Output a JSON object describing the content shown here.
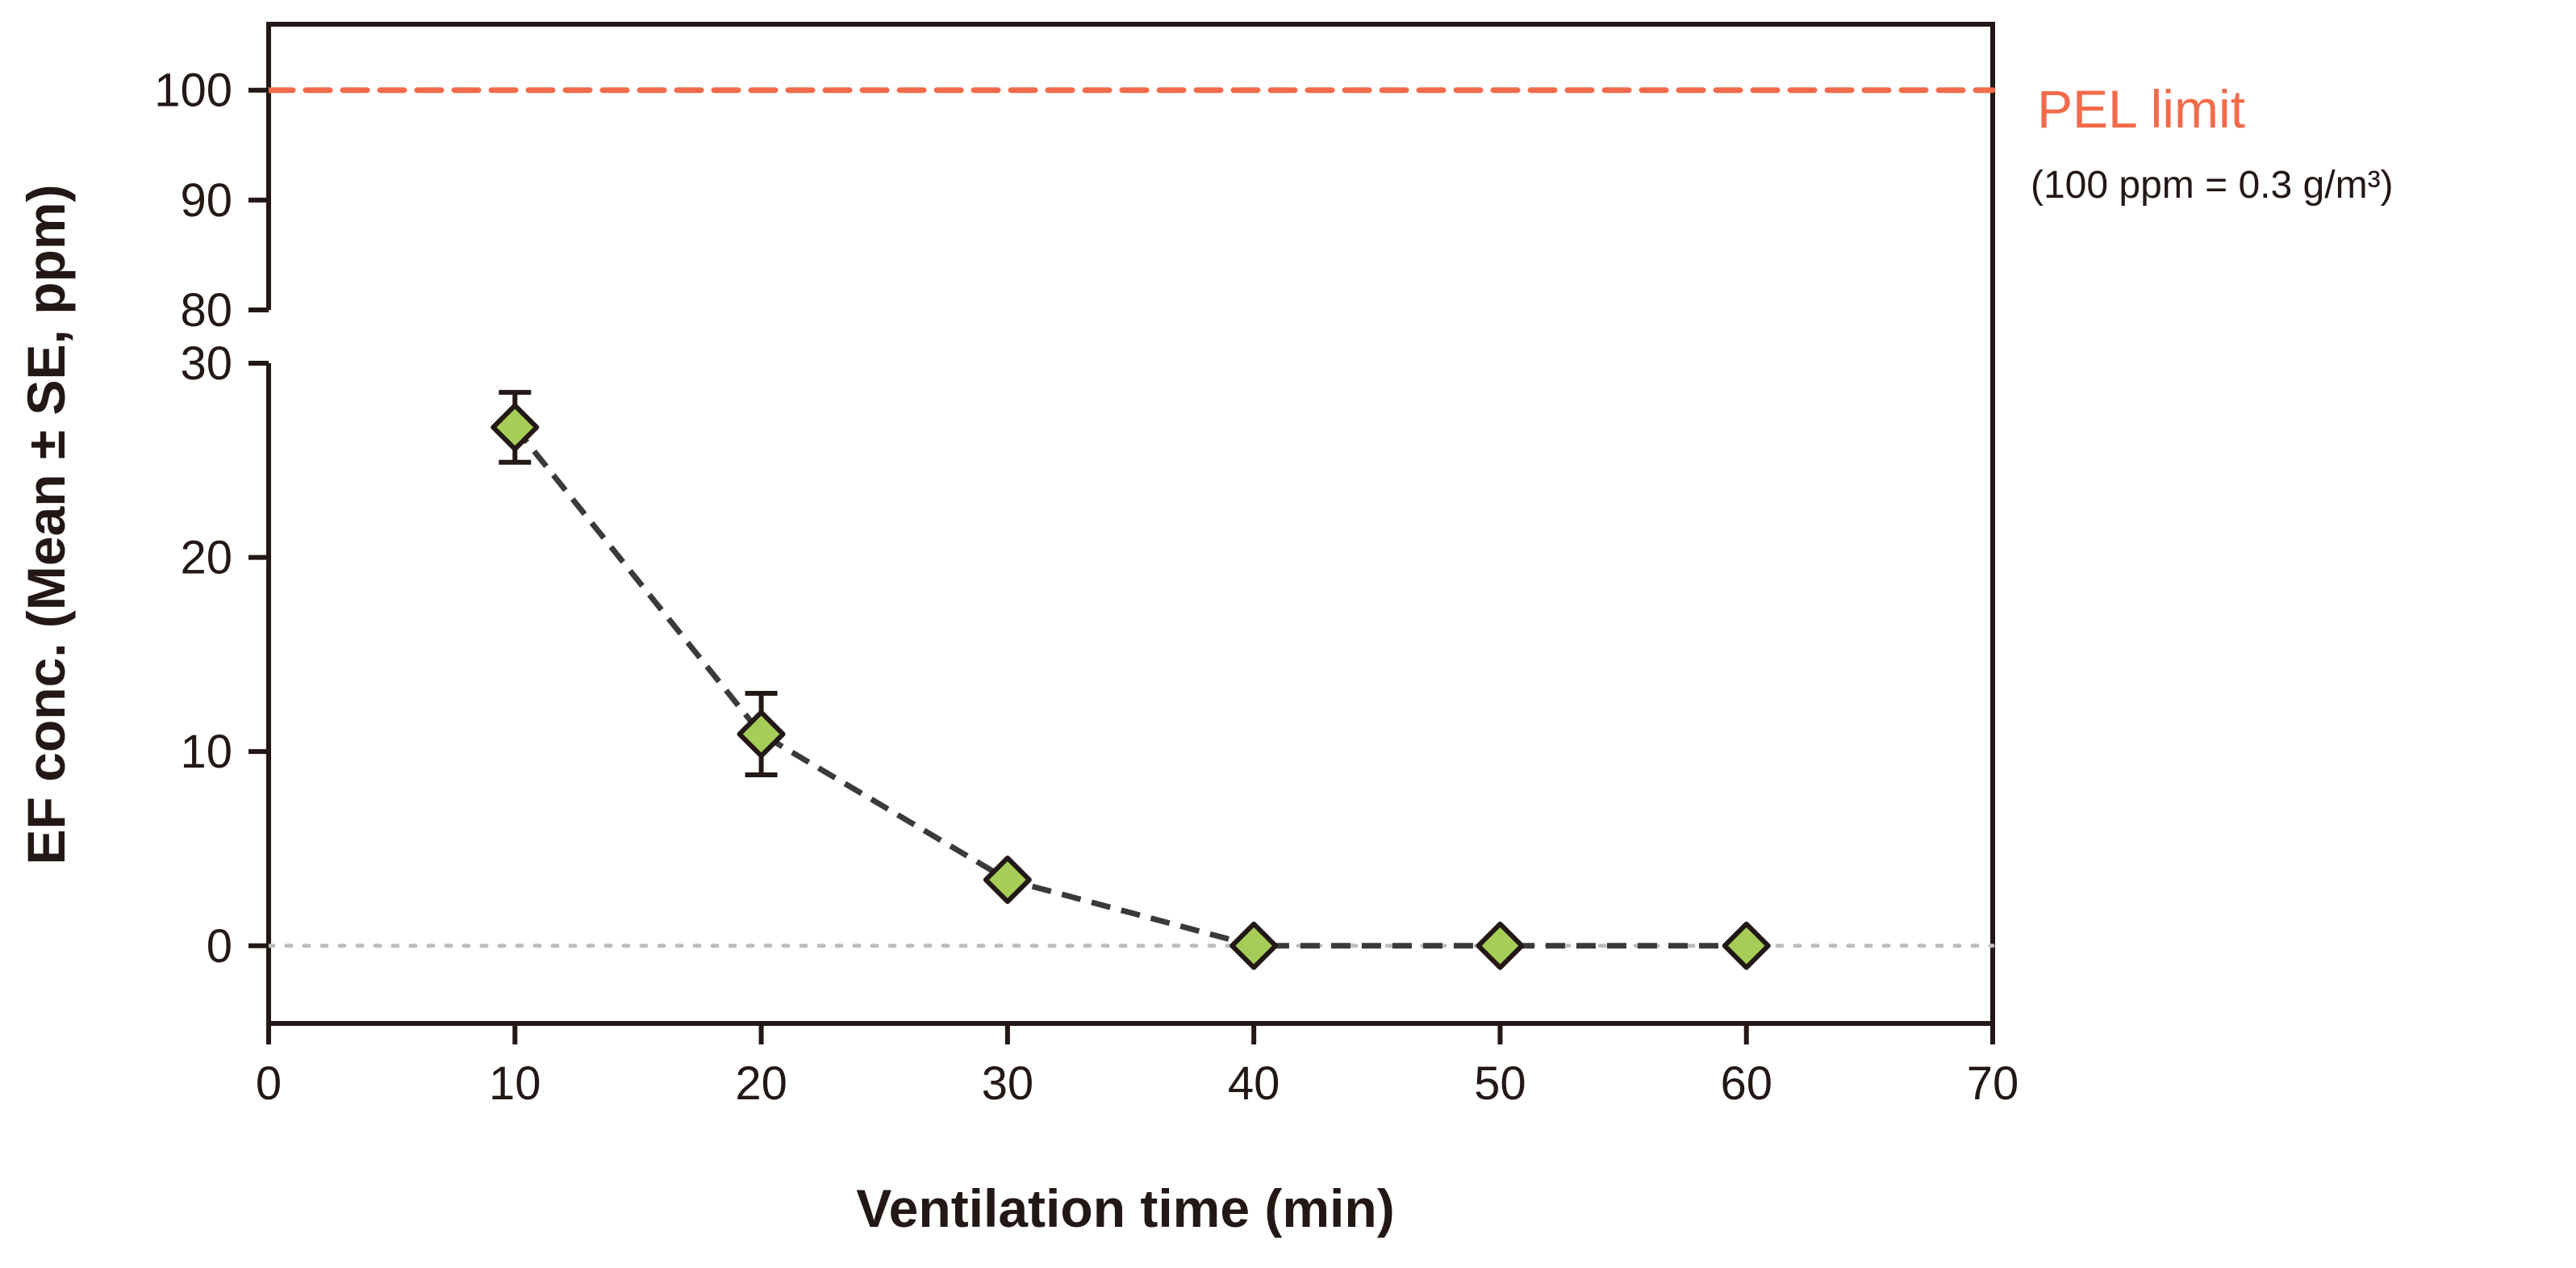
{
  "chart_data": {
    "type": "line",
    "title": "",
    "xlabel": "Ventilation time (min)",
    "ylabel": "EF conc. (Mean ± SE, ppm)",
    "xlim": [
      0,
      70
    ],
    "x_ticks": [
      0,
      10,
      20,
      30,
      40,
      50,
      60,
      70
    ],
    "y_axis_break": true,
    "y_lower_range": [
      -4,
      30
    ],
    "y_lower_ticks": [
      0,
      10,
      20,
      30
    ],
    "y_upper_range": [
      80,
      106
    ],
    "y_upper_ticks": [
      80,
      90,
      100
    ],
    "series": [
      {
        "name": "EF concentration",
        "x": [
          10,
          20,
          30,
          40,
          50,
          60
        ],
        "values": [
          26.7,
          10.9,
          3.4,
          0,
          0,
          0
        ],
        "se": [
          1.8,
          2.1,
          0,
          0,
          0,
          0
        ],
        "color": "#a6cd57",
        "line_color": "#3a3a3a",
        "line_style": "dashed",
        "marker": "diamond"
      }
    ],
    "reference_lines": [
      {
        "name": "PEL limit",
        "value": 100,
        "label": "PEL limit",
        "note": "(100 ppm = 0.3 g/m³)",
        "color": "#f26b4a",
        "style": "dashed"
      },
      {
        "name": "zero line",
        "value": 0,
        "color": "#bdbdbd",
        "style": "dotted"
      }
    ],
    "grid": false
  }
}
